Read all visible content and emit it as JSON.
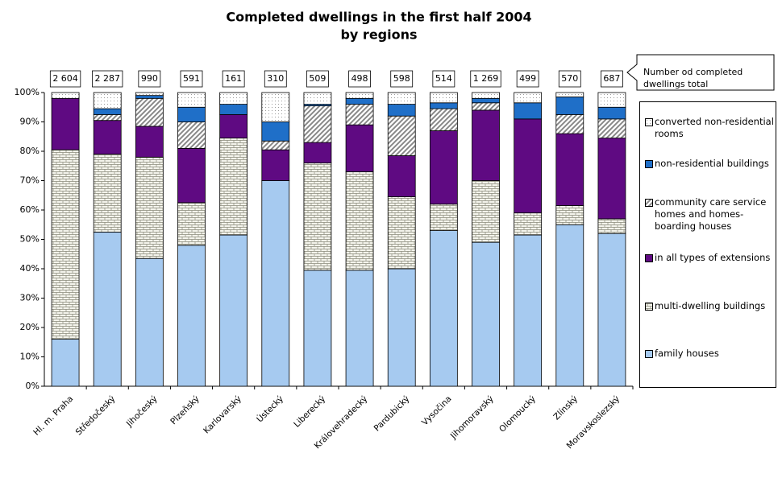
{
  "chart_data": {
    "type": "stacked-bar-percent",
    "title": [
      "Completed dwellings in the first half 2004",
      "by regions"
    ],
    "annotation": [
      "Number od completed",
      "dwellings total"
    ],
    "categories": [
      "Hl. m. Praha",
      "Středočeský",
      "Jihočeský",
      "Plzeňský",
      "Karlovarský",
      "Ústecký",
      "Liberecký",
      "Královehradecký",
      "Pardubický",
      "Vysočina",
      "Jihomoravský",
      "Olomoucký",
      "Zlínský",
      "Moravskoslezský"
    ],
    "totals": {
      "values": [
        2604,
        2287,
        990,
        591,
        161,
        310,
        509,
        498,
        598,
        514,
        1269,
        499,
        570,
        687
      ],
      "value_labels": [
        "2 604",
        "2 287",
        "990",
        "591",
        "161",
        "310",
        "509",
        "498",
        "598",
        "514",
        "1 269",
        "499",
        "570",
        "687"
      ]
    },
    "series": [
      {
        "name": "family houses",
        "color": "#a6caf0",
        "pattern": null,
        "values": [
          16,
          52.5,
          43.5,
          48,
          51.5,
          70,
          39.5,
          39.5,
          40,
          53,
          49,
          51.5,
          55,
          52
        ]
      },
      {
        "name": "multi-dwelling buildings",
        "color": "#f4f4ec",
        "pattern": "brick",
        "values": [
          64.5,
          26.5,
          34.5,
          14.5,
          33,
          0,
          36.5,
          33.5,
          24.5,
          9,
          21,
          7.5,
          6.5,
          5
        ]
      },
      {
        "name": "in all types of extensions",
        "color": "#5f0a82",
        "pattern": null,
        "values": [
          17.5,
          11.5,
          10.5,
          18.5,
          8,
          10.5,
          7,
          16,
          14,
          25,
          24,
          32,
          24.5,
          27.5
        ]
      },
      {
        "name": "community care service homes and homes-boarding houses",
        "color": "#9a9a9a",
        "pattern": "hatch",
        "values": [
          0,
          2,
          9.5,
          9,
          0,
          3,
          12.5,
          7,
          13.5,
          7.5,
          2.5,
          0,
          6.5,
          6.5
        ]
      },
      {
        "name": "non-residential buildings",
        "color": "#1f6fc8",
        "pattern": null,
        "values": [
          0,
          2,
          1,
          5,
          3.5,
          6.5,
          0.5,
          2,
          4,
          2,
          1.5,
          5.5,
          6,
          4
        ]
      },
      {
        "name": "converted non-residential rooms",
        "color": "#d8d8d8",
        "pattern": "dots",
        "values": [
          2,
          5.5,
          1,
          5,
          4,
          10,
          4,
          2,
          4,
          3.5,
          2,
          3.5,
          1.5,
          5
        ]
      }
    ],
    "ylim": [
      0,
      100
    ],
    "yticks": [
      {
        "value": 0,
        "label": "0%"
      },
      {
        "value": 10,
        "label": "10%"
      },
      {
        "value": 20,
        "label": "20%"
      },
      {
        "value": 30,
        "label": "30%"
      },
      {
        "value": 40,
        "label": "40%"
      },
      {
        "value": 50,
        "label": "50%"
      },
      {
        "value": 60,
        "label": "60%"
      },
      {
        "value": 70,
        "label": "70%"
      },
      {
        "value": 80,
        "label": "80%"
      },
      {
        "value": 90,
        "label": "90%"
      },
      {
        "value": 100,
        "label": "100%"
      }
    ],
    "legend": "right"
  }
}
